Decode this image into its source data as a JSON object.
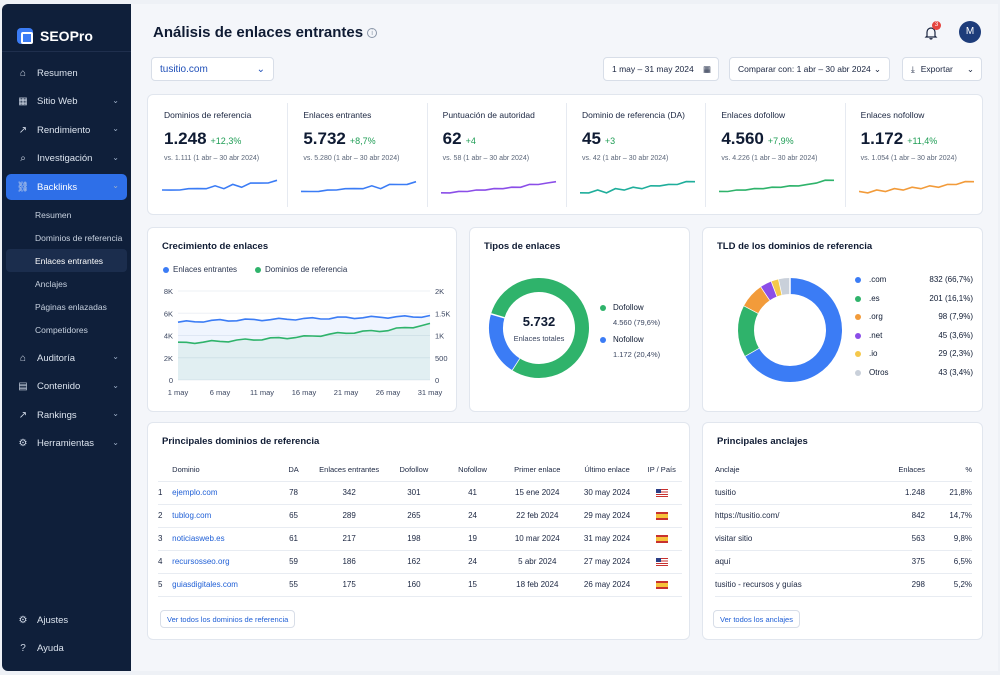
{
  "app": {
    "name": "SEOPro"
  },
  "sidebar": {
    "items": [
      {
        "label": "Resumen",
        "icon": "home-icon",
        "glyph": "⌂"
      },
      {
        "label": "Sitio Web",
        "icon": "website-icon",
        "glyph": "▦",
        "chevron": true
      },
      {
        "label": "Rendimiento",
        "icon": "trend-icon",
        "glyph": "↗",
        "chevron": true
      },
      {
        "label": "Investigación",
        "icon": "search-icon",
        "glyph": "⌕",
        "chevron": true
      },
      {
        "label": "Backlinks",
        "icon": "link-icon",
        "glyph": "⛓",
        "chevron": true,
        "active": true
      }
    ],
    "sub_items": [
      {
        "label": "Resumen"
      },
      {
        "label": "Dominios de referencia"
      },
      {
        "label": "Enlaces entrantes",
        "active": true
      },
      {
        "label": "Anclajes"
      },
      {
        "label": "Páginas enlazadas"
      },
      {
        "label": "Competidores"
      }
    ],
    "items2": [
      {
        "label": "Auditoría",
        "icon": "audit-icon",
        "glyph": "⌂",
        "chevron": true
      },
      {
        "label": "Contenido",
        "icon": "content-icon",
        "glyph": "▤",
        "chevron": true
      },
      {
        "label": "Rankings",
        "icon": "rankings-icon",
        "glyph": "↗",
        "chevron": true
      },
      {
        "label": "Herramientas",
        "icon": "tools-icon",
        "glyph": "⚙",
        "chevron": true
      }
    ],
    "bottom": [
      {
        "label": "Ajustes",
        "icon": "settings-icon",
        "glyph": "⚙"
      },
      {
        "label": "Ayuda",
        "icon": "help-icon",
        "glyph": "?"
      }
    ]
  },
  "header": {
    "title": "Análisis de enlaces entrantes",
    "notifications": "3",
    "avatar": "M"
  },
  "controls": {
    "domain": "tusitio.com",
    "date_range": "1 may – 31 may 2024",
    "compare": "Comparar con: 1 abr – 30 abr 2024",
    "export": "Exportar"
  },
  "kpis": [
    {
      "label": "Dominios de referencia",
      "value": "1.248",
      "delta": "+12,3%",
      "compare": "vs. 1.111 (1 abr – 30 abr 2024)",
      "color": "#3b7cf5"
    },
    {
      "label": "Enlaces entrantes",
      "value": "5.732",
      "delta": "+8,7%",
      "compare": "vs. 5.280 (1 abr – 30 abr 2024)",
      "color": "#3b7cf5"
    },
    {
      "label": "Puntuación de autoridad",
      "value": "62",
      "delta": "+4",
      "compare": "vs. 58 (1 abr – 30 abr 2024)",
      "color": "#8b4ee8"
    },
    {
      "label": "Dominio de referencia (DA)",
      "value": "45",
      "delta": "+3",
      "compare": "vs. 42 (1 abr – 30 abr 2024)",
      "color": "#1fae9b"
    },
    {
      "label": "Enlaces dofollow",
      "value": "4.560",
      "delta": "+7,9%",
      "compare": "vs. 4.226 (1 abr – 30 abr 2024)",
      "color": "#2fb36b"
    },
    {
      "label": "Enlaces nofollow",
      "value": "1.172",
      "delta": "+11,4%",
      "compare": "vs. 1.054 (1 abr – 30 abr 2024)",
      "color": "#f29b3a"
    }
  ],
  "growth": {
    "title": "Crecimiento de enlaces",
    "legend": [
      "Enlaces entrantes",
      "Dominios de referencia"
    ],
    "colors": [
      "#3b7cf5",
      "#2fb36b"
    ]
  },
  "types": {
    "title": "Tipos de enlaces",
    "total": "5.732",
    "total_label": "Enlaces totales",
    "items": [
      {
        "label": "Dofollow",
        "value": "4.560 (79,6%)",
        "color": "#2fb36b"
      },
      {
        "label": "Nofollow",
        "value": "1.172 (20,4%)",
        "color": "#3b7cf5"
      }
    ]
  },
  "tld": {
    "title": "TLD de los dominios de referencia",
    "items": [
      {
        "label": ".com",
        "value": "832 (66,7%)",
        "color": "#3b7cf5"
      },
      {
        "label": ".es",
        "value": "201 (16,1%)",
        "color": "#2fb36b"
      },
      {
        "label": ".org",
        "value": "98 (7,9%)",
        "color": "#f29b3a"
      },
      {
        "label": ".net",
        "value": "45 (3,6%)",
        "color": "#8b4ee8"
      },
      {
        "label": ".io",
        "value": "29 (2,3%)",
        "color": "#f5c84b"
      },
      {
        "label": "Otros",
        "value": "43 (3,4%)",
        "color": "#c9d0da"
      }
    ]
  },
  "domains_table": {
    "title": "Principales dominios de referencia",
    "headers": [
      "Dominio",
      "DA",
      "Enlaces entrantes",
      "Dofollow",
      "Nofollow",
      "Primer enlace",
      "Último enlace",
      "IP / País"
    ],
    "rows": [
      {
        "n": "1",
        "domain": "ejemplo.com",
        "da": "78",
        "links": "342",
        "dof": "301",
        "nof": "41",
        "first": "15 ene 2024",
        "last": "30 may 2024",
        "country": "US"
      },
      {
        "n": "2",
        "domain": "tublog.com",
        "da": "65",
        "links": "289",
        "dof": "265",
        "nof": "24",
        "first": "22 feb 2024",
        "last": "29 may 2024",
        "country": "ES"
      },
      {
        "n": "3",
        "domain": "noticiasweb.es",
        "da": "61",
        "links": "217",
        "dof": "198",
        "nof": "19",
        "first": "10 mar 2024",
        "last": "31 may 2024",
        "country": "ES"
      },
      {
        "n": "4",
        "domain": "recursosseo.org",
        "da": "59",
        "links": "186",
        "dof": "162",
        "nof": "24",
        "first": "5 abr 2024",
        "last": "27 may 2024",
        "country": "US"
      },
      {
        "n": "5",
        "domain": "guiasdigitales.com",
        "da": "55",
        "links": "175",
        "dof": "160",
        "nof": "15",
        "first": "18 feb 2024",
        "last": "26 may 2024",
        "country": "ES"
      }
    ],
    "button": "Ver todos los dominios de referencia"
  },
  "anchors_table": {
    "title": "Principales anclajes",
    "headers": [
      "Anclaje",
      "Enlaces",
      "%"
    ],
    "rows": [
      {
        "anchor": "tusitio",
        "links": "1.248",
        "pct": "21,8%"
      },
      {
        "anchor": "https://tusitio.com/",
        "links": "842",
        "pct": "14,7%"
      },
      {
        "anchor": "visitar sitio",
        "links": "563",
        "pct": "9,8%"
      },
      {
        "anchor": "aquí",
        "links": "375",
        "pct": "6,5%"
      },
      {
        "anchor": "tusitio - recursos y guías",
        "links": "298",
        "pct": "5,2%"
      }
    ],
    "button": "Ver todos los anclajes"
  },
  "chart_data": [
    {
      "type": "line",
      "title": "Crecimiento de enlaces",
      "x": [
        "1 may",
        "6 may",
        "11 may",
        "16 may",
        "21 may",
        "26 may",
        "31 may"
      ],
      "series": [
        {
          "name": "Enlaces entrantes",
          "axis": "left",
          "values": [
            5200,
            5350,
            5420,
            5500,
            5600,
            5650,
            5732
          ]
        },
        {
          "name": "Dominios de referencia",
          "axis": "right",
          "values": [
            830,
            870,
            920,
            970,
            1060,
            1120,
            1248
          ]
        }
      ],
      "ylim_left": [
        0,
        8000
      ],
      "yticks_left": [
        "0",
        "2K",
        "4K",
        "6K",
        "8K"
      ],
      "ylim_right": [
        0,
        2000
      ],
      "yticks_right": [
        "0",
        "500",
        "1K",
        "1.5K",
        "2K"
      ]
    },
    {
      "type": "pie",
      "title": "Tipos de enlaces",
      "categories": [
        "Dofollow",
        "Nofollow"
      ],
      "values": [
        4560,
        1172
      ]
    },
    {
      "type": "pie",
      "title": "TLD de los dominios de referencia",
      "categories": [
        ".com",
        ".es",
        ".org",
        ".net",
        ".io",
        "Otros"
      ],
      "values": [
        832,
        201,
        98,
        45,
        29,
        43
      ]
    }
  ]
}
